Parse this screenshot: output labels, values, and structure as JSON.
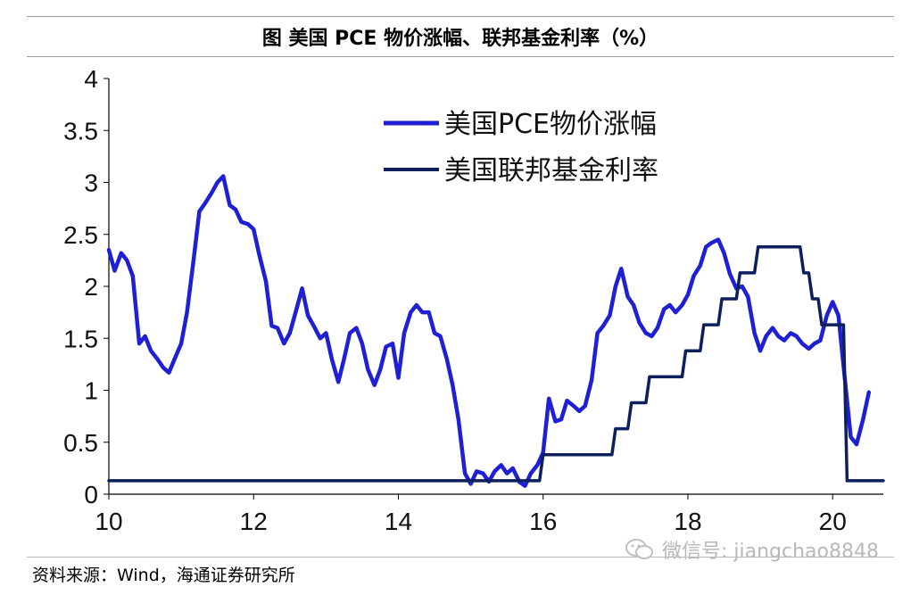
{
  "title": "图  美国 PCE 物价涨幅、联邦基金利率（%）",
  "source": "资料来源：Wind，海通证券研究所",
  "watermark": "微信号: jiangchao8848",
  "colors": {
    "pce": "#1f1fd6",
    "fed": "#0d1f5c",
    "axis": "#000000"
  },
  "chart_data": {
    "type": "line",
    "xlim": [
      2010,
      2020.7
    ],
    "ylim": [
      0,
      4
    ],
    "x_ticks": [
      2010,
      2012,
      2014,
      2016,
      2018,
      2020
    ],
    "x_tick_labels": [
      "10",
      "12",
      "14",
      "16",
      "18",
      "20"
    ],
    "y_ticks": [
      0,
      0.5,
      1,
      1.5,
      2,
      2.5,
      3,
      3.5,
      4
    ],
    "y_tick_labels": [
      "0",
      "0.5",
      "1",
      "1.5",
      "2",
      "2.5",
      "3",
      "3.5",
      "4"
    ],
    "legend_position": "top-right",
    "series": [
      {
        "name": "美国PCE物价涨幅",
        "key": "pce",
        "x": [
          2010.0,
          2010.08,
          2010.17,
          2010.25,
          2010.33,
          2010.42,
          2010.5,
          2010.58,
          2010.67,
          2010.75,
          2010.83,
          2010.92,
          2011.0,
          2011.08,
          2011.17,
          2011.25,
          2011.33,
          2011.42,
          2011.5,
          2011.58,
          2011.67,
          2011.75,
          2011.83,
          2011.92,
          2012.0,
          2012.08,
          2012.17,
          2012.25,
          2012.33,
          2012.42,
          2012.5,
          2012.58,
          2012.67,
          2012.75,
          2012.83,
          2012.92,
          2013.0,
          2013.08,
          2013.17,
          2013.25,
          2013.33,
          2013.42,
          2013.5,
          2013.58,
          2013.67,
          2013.75,
          2013.83,
          2013.92,
          2014.0,
          2014.08,
          2014.17,
          2014.25,
          2014.33,
          2014.42,
          2014.5,
          2014.58,
          2014.67,
          2014.75,
          2014.83,
          2014.92,
          2015.0,
          2015.08,
          2015.17,
          2015.25,
          2015.33,
          2015.42,
          2015.5,
          2015.58,
          2015.67,
          2015.75,
          2015.83,
          2015.92,
          2016.0,
          2016.08,
          2016.17,
          2016.25,
          2016.33,
          2016.42,
          2016.5,
          2016.58,
          2016.67,
          2016.75,
          2016.83,
          2016.92,
          2017.0,
          2017.08,
          2017.17,
          2017.25,
          2017.33,
          2017.42,
          2017.5,
          2017.58,
          2017.67,
          2017.75,
          2017.83,
          2017.92,
          2018.0,
          2018.08,
          2018.17,
          2018.25,
          2018.33,
          2018.42,
          2018.5,
          2018.58,
          2018.67,
          2018.75,
          2018.83,
          2018.92,
          2019.0,
          2019.08,
          2019.17,
          2019.25,
          2019.33,
          2019.42,
          2019.5,
          2019.58,
          2019.67,
          2019.75,
          2019.83,
          2019.92,
          2020.0,
          2020.08,
          2020.17,
          2020.25,
          2020.33,
          2020.42,
          2020.5
        ],
        "values": [
          2.35,
          2.15,
          2.32,
          2.25,
          2.1,
          1.45,
          1.52,
          1.38,
          1.3,
          1.22,
          1.17,
          1.32,
          1.45,
          1.75,
          2.25,
          2.72,
          2.8,
          2.9,
          3.0,
          3.06,
          2.78,
          2.74,
          2.62,
          2.6,
          2.55,
          2.3,
          2.05,
          1.62,
          1.6,
          1.45,
          1.55,
          1.75,
          1.98,
          1.72,
          1.62,
          1.5,
          1.55,
          1.3,
          1.08,
          1.3,
          1.55,
          1.6,
          1.45,
          1.2,
          1.05,
          1.2,
          1.42,
          1.45,
          1.12,
          1.55,
          1.75,
          1.82,
          1.75,
          1.75,
          1.55,
          1.52,
          1.3,
          1.05,
          0.72,
          0.2,
          0.1,
          0.22,
          0.2,
          0.12,
          0.22,
          0.28,
          0.2,
          0.25,
          0.12,
          0.08,
          0.2,
          0.28,
          0.4,
          0.92,
          0.7,
          0.72,
          0.9,
          0.85,
          0.8,
          0.85,
          1.1,
          1.55,
          1.62,
          1.72,
          2.0,
          2.17,
          1.9,
          1.82,
          1.65,
          1.55,
          1.52,
          1.6,
          1.78,
          1.82,
          1.75,
          1.82,
          1.92,
          2.1,
          2.2,
          2.38,
          2.42,
          2.45,
          2.32,
          2.12,
          1.98,
          2.0,
          1.9,
          1.55,
          1.38,
          1.52,
          1.6,
          1.52,
          1.48,
          1.55,
          1.52,
          1.45,
          1.4,
          1.45,
          1.48,
          1.72,
          1.85,
          1.72,
          1.1,
          0.55,
          0.48,
          0.72,
          0.98
        ]
      },
      {
        "name": "美国联邦基金利率",
        "key": "fed",
        "x": [
          2010.0,
          2015.95,
          2016.0,
          2016.95,
          2017.0,
          2017.17,
          2017.22,
          2017.42,
          2017.47,
          2017.92,
          2017.97,
          2018.17,
          2018.22,
          2018.42,
          2018.47,
          2018.67,
          2018.72,
          2018.92,
          2018.97,
          2019.55,
          2019.6,
          2019.67,
          2019.72,
          2019.8,
          2019.85,
          2020.15,
          2020.2,
          2020.7
        ],
        "values": [
          0.13,
          0.13,
          0.38,
          0.38,
          0.63,
          0.63,
          0.88,
          0.88,
          1.13,
          1.13,
          1.38,
          1.38,
          1.63,
          1.63,
          1.88,
          1.88,
          2.13,
          2.13,
          2.38,
          2.38,
          2.13,
          2.13,
          1.88,
          1.88,
          1.63,
          1.63,
          0.13,
          0.13
        ]
      }
    ]
  }
}
